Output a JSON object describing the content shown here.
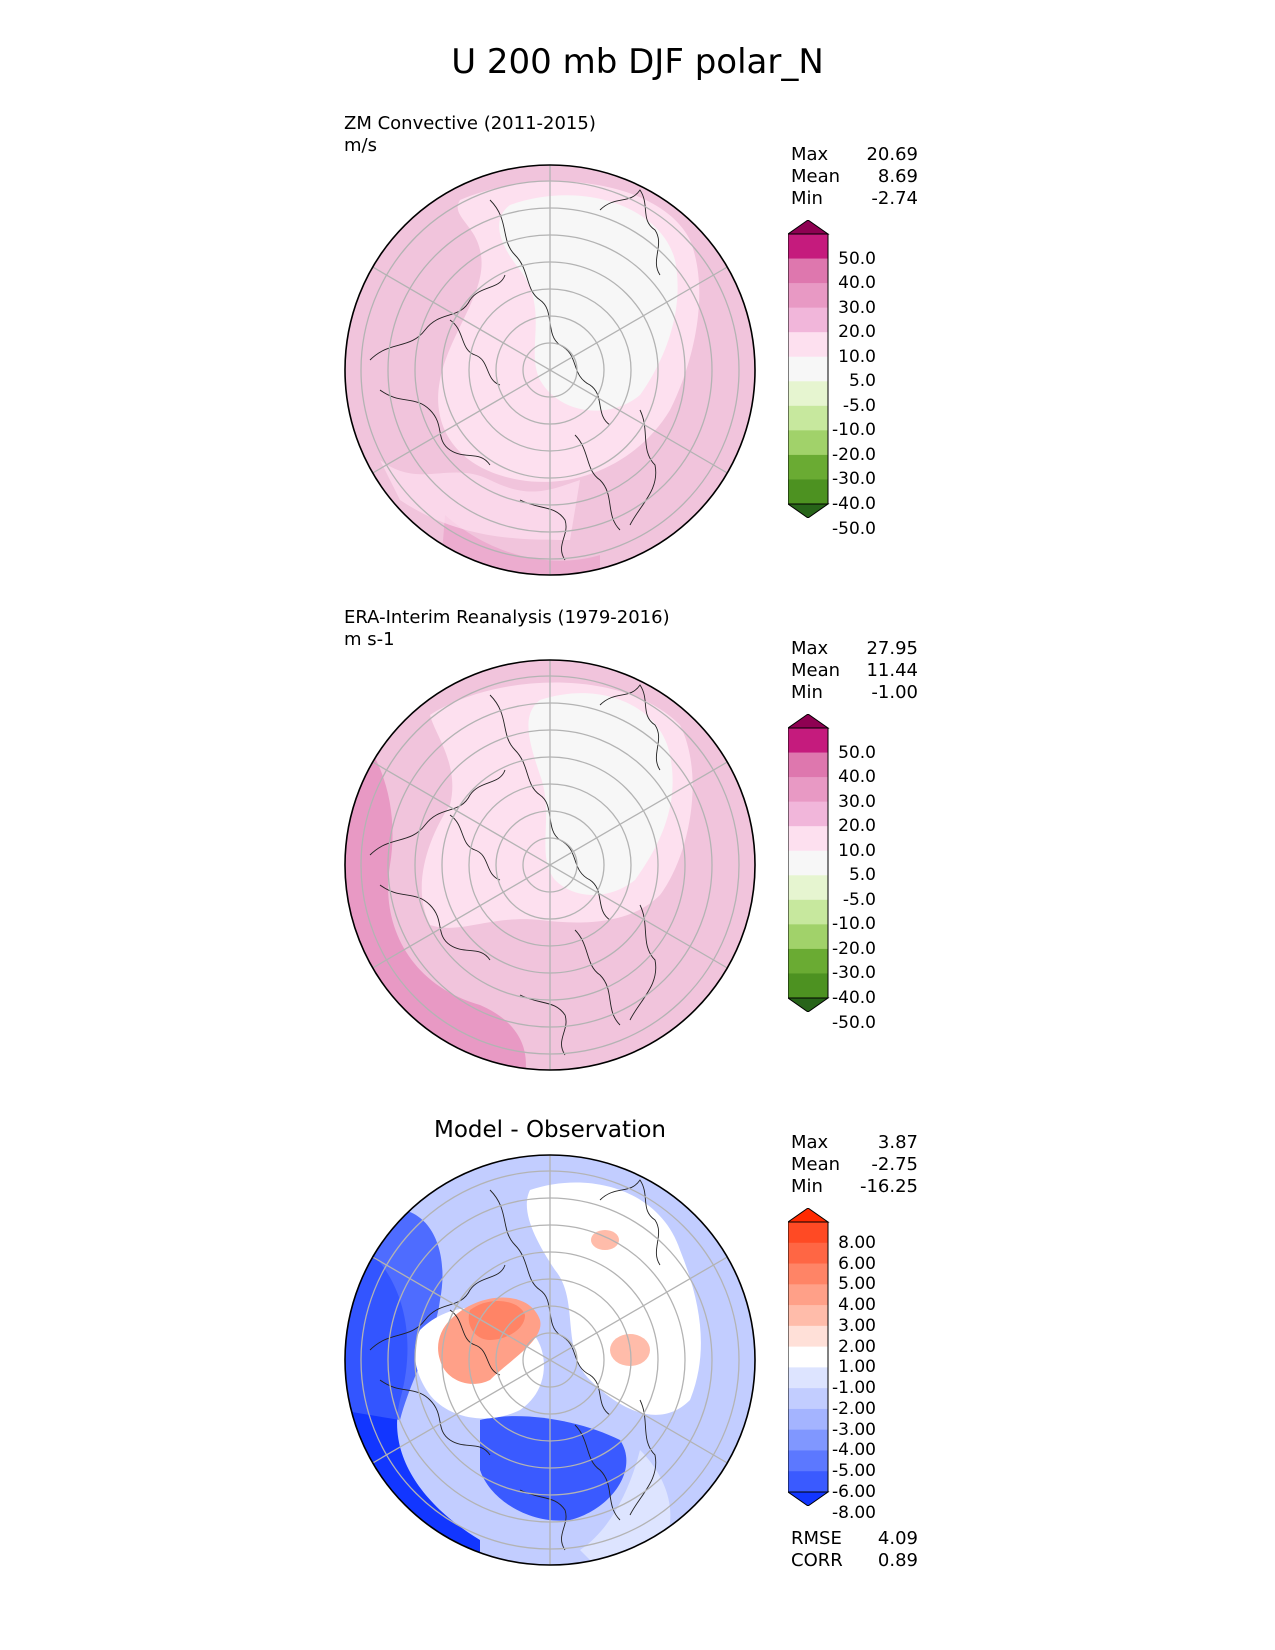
{
  "title": "U 200 mb DJF polar_N",
  "panels": [
    {
      "id": "model",
      "title": "ZM Convective (2011-2015)",
      "units": "m/s",
      "stats": [
        {
          "label": "Max",
          "value": "20.69"
        },
        {
          "label": "Mean",
          "value": "8.69"
        },
        {
          "label": "Min",
          "value": "-2.74"
        }
      ],
      "colorbar": {
        "levels": [
          "50.0",
          "40.0",
          "30.0",
          "20.0",
          "10.0",
          "5.0",
          "-5.0",
          "-10.0",
          "-20.0",
          "-30.0",
          "-40.0",
          "-50.0"
        ],
        "colors": [
          "#8e0152",
          "#c51b7d",
          "#de77ae",
          "#e899c4",
          "#f1b6da",
          "#fde0ef",
          "#f7f7f7",
          "#e6f5d0",
          "#c7e89e",
          "#a1d26a",
          "#6aab33",
          "#4d9221",
          "#276419"
        ]
      }
    },
    {
      "id": "obs",
      "title": "ERA-Interim Reanalysis (1979-2016)",
      "units": "m s-1",
      "stats": [
        {
          "label": "Max",
          "value": "27.95"
        },
        {
          "label": "Mean",
          "value": "11.44"
        },
        {
          "label": "Min",
          "value": "-1.00"
        }
      ],
      "colorbar": {
        "levels": [
          "50.0",
          "40.0",
          "30.0",
          "20.0",
          "10.0",
          "5.0",
          "-5.0",
          "-10.0",
          "-20.0",
          "-30.0",
          "-40.0",
          "-50.0"
        ],
        "colors": [
          "#8e0152",
          "#c51b7d",
          "#de77ae",
          "#e899c4",
          "#f1b6da",
          "#fde0ef",
          "#f7f7f7",
          "#e6f5d0",
          "#c7e89e",
          "#a1d26a",
          "#6aab33",
          "#4d9221",
          "#276419"
        ]
      }
    },
    {
      "id": "diff",
      "title": "Model - Observation",
      "units": "",
      "stats": [
        {
          "label": "Max",
          "value": "3.87"
        },
        {
          "label": "Mean",
          "value": "-2.75"
        },
        {
          "label": "Min",
          "value": "-16.25"
        }
      ],
      "colorbar": {
        "levels": [
          "8.00",
          "6.00",
          "5.00",
          "4.00",
          "3.00",
          "2.00",
          "1.00",
          "-1.00",
          "-2.00",
          "-3.00",
          "-4.00",
          "-5.00",
          "-6.00",
          "-8.00"
        ],
        "colors": [
          "#ff2a00",
          "#ff4a24",
          "#ff6644",
          "#ff8466",
          "#ffa088",
          "#ffbcaa",
          "#ffe0d8",
          "#ffffff",
          "#dde4ff",
          "#c2cdff",
          "#a4b4ff",
          "#8097ff",
          "#5c78ff",
          "#3a5aff",
          "#1236ff"
        ]
      },
      "metrics": [
        {
          "label": "RMSE",
          "value": "4.09"
        },
        {
          "label": "CORR",
          "value": "0.89"
        }
      ]
    }
  ],
  "chart_data": [
    {
      "type": "heatmap",
      "projection": "north polar stereographic",
      "title": "ZM Convective (2011-2015)",
      "units": "m/s",
      "field": "U 200 mb DJF",
      "max": 20.69,
      "mean": 8.69,
      "min": -2.74,
      "contour_levels": [
        -50,
        -40,
        -30,
        -20,
        -10,
        -5,
        5,
        10,
        20,
        30,
        40,
        50
      ],
      "extend": "both"
    },
    {
      "type": "heatmap",
      "projection": "north polar stereographic",
      "title": "ERA-Interim Reanalysis (1979-2016)",
      "units": "m s-1",
      "field": "U 200 mb DJF",
      "max": 27.95,
      "mean": 11.44,
      "min": -1.0,
      "contour_levels": [
        -50,
        -40,
        -30,
        -20,
        -10,
        -5,
        5,
        10,
        20,
        30,
        40,
        50
      ],
      "extend": "both"
    },
    {
      "type": "heatmap",
      "projection": "north polar stereographic",
      "title": "Model - Observation",
      "max": 3.87,
      "mean": -2.75,
      "min": -16.25,
      "contour_levels": [
        -8,
        -6,
        -5,
        -4,
        -3,
        -2,
        -1,
        1,
        2,
        3,
        4,
        5,
        6,
        8
      ],
      "extend": "both",
      "rmse": 4.09,
      "corr": 0.89
    }
  ]
}
